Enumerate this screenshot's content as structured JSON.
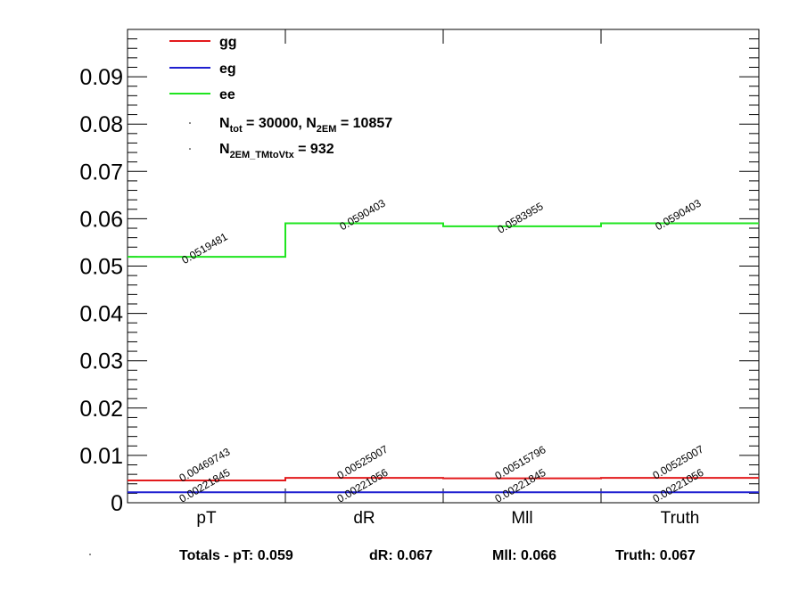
{
  "chart_data": {
    "type": "line",
    "step": true,
    "categories": [
      "pT",
      "dR",
      "Mll",
      "Truth"
    ],
    "ylim": [
      0,
      0.1
    ],
    "yticks": [
      "0",
      "0.01",
      "0.02",
      "0.03",
      "0.04",
      "0.05",
      "0.06",
      "0.07",
      "0.08",
      "0.09"
    ],
    "grid": false,
    "legend_position": "top-left",
    "series": [
      {
        "name": "gg",
        "color": "#e31a1c",
        "values": [
          0.00469743,
          0.00525007,
          0.00515796,
          0.00525007
        ],
        "labels": [
          "0.00469743",
          "0.00525007",
          "0.00515796",
          "0.00525007"
        ]
      },
      {
        "name": "eg",
        "color": "#1f1fd0",
        "values": [
          0.00221845,
          0.00221056,
          0.00221845,
          0.00221056
        ],
        "labels": [
          "0.00221845",
          "0.00221056",
          "0.00221845",
          "0.00221056"
        ]
      },
      {
        "name": "ee",
        "color": "#1fe51f",
        "values": [
          0.0519481,
          0.0590403,
          0.0583955,
          0.0590403
        ],
        "labels": [
          "0.0519481",
          "0.0590403",
          "0.0583955",
          "0.0590403"
        ]
      }
    ],
    "annotations": {
      "ntot_pre": "N",
      "ntot_sub": "tot",
      "ntot_mid": " = 30000, N",
      "n2em_sub": "2EM",
      "n2em_value": " = 10857",
      "ntm_pre": "N",
      "ntm_sub": "2EM_TMtoVtx",
      "ntm_value": "  = 932"
    },
    "totals": {
      "prefix": "Totals -  pT: 0.059",
      "dR": "dR: 0.067",
      "Mll": "Mll: 0.066",
      "Truth": "Truth: 0.067"
    }
  }
}
